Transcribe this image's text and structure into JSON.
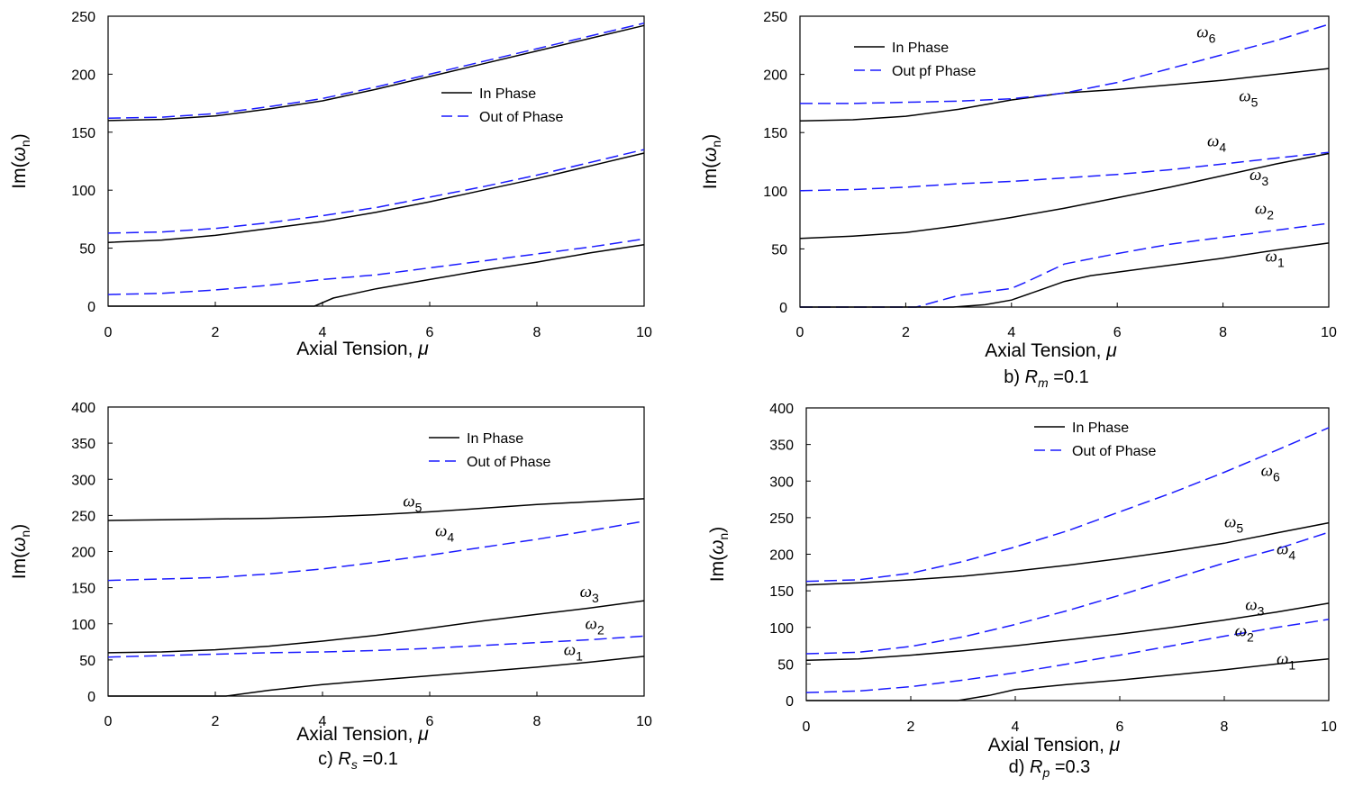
{
  "chart_data": [
    {
      "type": "line",
      "panel_caption": "",
      "ylabel": "Im(ωn)",
      "xlabel": "Axial Tension, μ",
      "xlim": [
        0,
        10
      ],
      "ylim": [
        0,
        250
      ],
      "xticks": [
        0,
        2,
        4,
        6,
        8,
        10
      ],
      "yticks": [
        0,
        50,
        100,
        150,
        200,
        250
      ],
      "legend": {
        "in_phase": "In Phase",
        "out_of_phase": "Out of Phase",
        "position": "top-right"
      },
      "mode_labels": [],
      "series": [
        {
          "phase": "in",
          "x": [
            0,
            1,
            2,
            3,
            4,
            5,
            6,
            7,
            8,
            9,
            10
          ],
          "y": [
            160,
            161,
            164,
            170,
            177,
            187,
            198,
            209,
            220,
            231,
            242
          ]
        },
        {
          "phase": "out",
          "x": [
            0,
            1,
            2,
            3,
            4,
            5,
            6,
            7,
            8,
            9,
            10
          ],
          "y": [
            162,
            163,
            166,
            172,
            179,
            189,
            200,
            211,
            222,
            233,
            244
          ]
        },
        {
          "phase": "in",
          "x": [
            0,
            1,
            2,
            3,
            4,
            5,
            6,
            7,
            8,
            9,
            10
          ],
          "y": [
            55,
            57,
            61,
            67,
            73,
            81,
            90,
            100,
            110,
            121,
            132
          ]
        },
        {
          "phase": "out",
          "x": [
            0,
            1,
            2,
            3,
            4,
            5,
            6,
            7,
            8,
            9,
            10
          ],
          "y": [
            63,
            64,
            67,
            72,
            78,
            85,
            94,
            103,
            113,
            124,
            135
          ]
        },
        {
          "phase": "in",
          "x": [
            0,
            1,
            2,
            3,
            3.85,
            4.2,
            5,
            6,
            7,
            8,
            9,
            10
          ],
          "y": [
            0,
            0,
            0,
            0,
            0,
            7,
            15,
            23,
            31,
            38,
            46,
            53
          ]
        },
        {
          "phase": "out",
          "x": [
            0,
            1,
            2,
            3,
            4,
            5,
            6,
            7,
            8,
            9,
            10
          ],
          "y": [
            10,
            11,
            14,
            18,
            23,
            27,
            33,
            39,
            45,
            51,
            58
          ]
        }
      ]
    },
    {
      "type": "line",
      "panel_caption": "b) Rm =0.1",
      "ylabel": "Im(ωn)",
      "xlabel": "Axial Tension, μ",
      "xlim": [
        0,
        10
      ],
      "ylim": [
        0,
        250
      ],
      "xticks": [
        0,
        2,
        4,
        6,
        8,
        10
      ],
      "yticks": [
        0,
        50,
        100,
        150,
        200,
        250
      ],
      "legend": {
        "in_phase": "In Phase",
        "out_of_phase": "Out pf Phase",
        "position": "top-left"
      },
      "mode_labels": [
        {
          "base": "ω",
          "sub": "6",
          "x": 7.5,
          "y": 232
        },
        {
          "base": "ω",
          "sub": "5",
          "x": 8.3,
          "y": 177
        },
        {
          "base": "ω",
          "sub": "4",
          "x": 7.7,
          "y": 138
        },
        {
          "base": "ω",
          "sub": "3",
          "x": 8.5,
          "y": 109
        },
        {
          "base": "ω",
          "sub": "2",
          "x": 8.6,
          "y": 80
        },
        {
          "base": "ω",
          "sub": "1",
          "x": 8.8,
          "y": 39
        }
      ],
      "series": [
        {
          "phase": "in",
          "x": [
            0,
            1,
            2,
            3,
            4,
            5,
            6,
            7,
            8,
            9,
            10
          ],
          "y": [
            160,
            161,
            164,
            170,
            178,
            184,
            187,
            191,
            195,
            200,
            205
          ]
        },
        {
          "phase": "out",
          "x": [
            0,
            1,
            2,
            3,
            4,
            5,
            6,
            7,
            8,
            9,
            10
          ],
          "y": [
            175,
            175,
            176,
            177,
            179,
            184,
            193,
            205,
            217,
            229,
            243
          ]
        },
        {
          "phase": "out",
          "x": [
            0,
            1,
            2,
            3,
            4,
            5,
            6,
            7,
            8,
            9,
            10
          ],
          "y": [
            100,
            101,
            103,
            106,
            108,
            111,
            114,
            118,
            123,
            128,
            133
          ]
        },
        {
          "phase": "in",
          "x": [
            0,
            1,
            2,
            3,
            4,
            5,
            6,
            7,
            8,
            9,
            10
          ],
          "y": [
            59,
            61,
            64,
            70,
            77,
            85,
            94,
            103,
            113,
            123,
            132
          ]
        },
        {
          "phase": "out",
          "x": [
            0,
            1,
            2,
            2.2,
            3,
            4,
            4.3,
            5,
            6,
            7,
            8,
            9,
            10
          ],
          "y": [
            0,
            0,
            0,
            0,
            10,
            16,
            22,
            37,
            46,
            54,
            60,
            66,
            72
          ]
        },
        {
          "phase": "in",
          "x": [
            0,
            1,
            2,
            2.9,
            3.5,
            4,
            4.5,
            5,
            5.5,
            6,
            7,
            8,
            9,
            10
          ],
          "y": [
            0,
            0,
            0,
            0,
            2,
            6,
            14,
            22,
            27,
            30,
            36,
            42,
            49,
            55
          ]
        }
      ]
    },
    {
      "type": "line",
      "panel_caption": "c) Rs =0.1",
      "ylabel": "Im(ωn)",
      "xlabel": "Axial Tension, μ",
      "xlim": [
        0,
        10
      ],
      "ylim": [
        0,
        400
      ],
      "xticks": [
        0,
        2,
        4,
        6,
        8,
        10
      ],
      "yticks": [
        0,
        50,
        100,
        150,
        200,
        250,
        300,
        350,
        400
      ],
      "legend": {
        "in_phase": "In Phase",
        "out_of_phase": "Out of Phase",
        "position": "top-right"
      },
      "mode_labels": [
        {
          "base": "ω",
          "sub": "5",
          "x": 5.5,
          "y": 262
        },
        {
          "base": "ω",
          "sub": "4",
          "x": 6.1,
          "y": 221
        },
        {
          "base": "ω",
          "sub": "3",
          "x": 8.8,
          "y": 137
        },
        {
          "base": "ω",
          "sub": "2",
          "x": 8.9,
          "y": 93
        },
        {
          "base": "ω",
          "sub": "1",
          "x": 8.5,
          "y": 57
        }
      ],
      "series": [
        {
          "phase": "in",
          "x": [
            0,
            1,
            2,
            3,
            4,
            5,
            6,
            7,
            8,
            9,
            10
          ],
          "y": [
            243,
            244,
            245,
            246,
            248,
            251,
            255,
            260,
            265,
            269,
            273
          ]
        },
        {
          "phase": "out",
          "x": [
            0,
            1,
            2,
            3,
            4,
            5,
            6,
            7,
            8,
            9,
            10
          ],
          "y": [
            160,
            162,
            164,
            169,
            176,
            185,
            195,
            206,
            217,
            229,
            242
          ]
        },
        {
          "phase": "in",
          "x": [
            0,
            1,
            2,
            3,
            4,
            5,
            6,
            7,
            8,
            9,
            10
          ],
          "y": [
            60,
            61,
            64,
            69,
            76,
            84,
            94,
            104,
            113,
            122,
            132
          ]
        },
        {
          "phase": "out",
          "x": [
            0,
            1,
            2,
            3,
            4,
            5,
            6,
            7,
            8,
            9,
            10
          ],
          "y": [
            54,
            56,
            58,
            60,
            61,
            63,
            66,
            70,
            74,
            78,
            83
          ]
        },
        {
          "phase": "in",
          "x": [
            0,
            1,
            2,
            2.2,
            3,
            4,
            5,
            6,
            7,
            8,
            9,
            10
          ],
          "y": [
            0,
            0,
            0,
            0,
            8,
            16,
            22,
            28,
            34,
            40,
            47,
            55
          ]
        }
      ]
    },
    {
      "type": "line",
      "panel_caption": "d) Rp =0.3",
      "ylabel": "Im(ωn)",
      "xlabel": "Axial Tension, μ",
      "xlim": [
        0,
        10
      ],
      "ylim": [
        0,
        400
      ],
      "xticks": [
        0,
        2,
        4,
        6,
        8,
        10
      ],
      "yticks": [
        0,
        50,
        100,
        150,
        200,
        250,
        300,
        350,
        400
      ],
      "legend": {
        "in_phase": "In Phase",
        "out_of_phase": "Out of Phase",
        "position": "top-left"
      },
      "mode_labels": [
        {
          "base": "ω",
          "sub": "6",
          "x": 8.7,
          "y": 307
        },
        {
          "base": "ω",
          "sub": "5",
          "x": 8.0,
          "y": 237
        },
        {
          "base": "ω",
          "sub": "4",
          "x": 9.0,
          "y": 200
        },
        {
          "base": "ω",
          "sub": "3",
          "x": 8.4,
          "y": 124
        },
        {
          "base": "ω",
          "sub": "2",
          "x": 8.2,
          "y": 88
        },
        {
          "base": "ω",
          "sub": "1",
          "x": 9.0,
          "y": 50
        }
      ],
      "series": [
        {
          "phase": "out",
          "x": [
            0,
            1,
            2,
            3,
            4,
            5,
            6,
            7,
            8,
            9,
            10
          ],
          "y": [
            163,
            165,
            174,
            190,
            210,
            232,
            258,
            284,
            312,
            342,
            373
          ]
        },
        {
          "phase": "in",
          "x": [
            0,
            1,
            2,
            3,
            4,
            5,
            6,
            7,
            8,
            9,
            10
          ],
          "y": [
            158,
            161,
            165,
            170,
            177,
            185,
            194,
            204,
            215,
            229,
            243
          ]
        },
        {
          "phase": "out",
          "x": [
            0,
            1,
            2,
            3,
            4,
            5,
            6,
            7,
            8,
            9,
            10
          ],
          "y": [
            64,
            66,
            74,
            87,
            104,
            123,
            144,
            166,
            188,
            207,
            230
          ]
        },
        {
          "phase": "in",
          "x": [
            0,
            1,
            2,
            3,
            4,
            5,
            6,
            7,
            8,
            9,
            10
          ],
          "y": [
            55,
            57,
            62,
            68,
            75,
            83,
            91,
            100,
            110,
            121,
            133
          ]
        },
        {
          "phase": "out",
          "x": [
            0,
            1,
            2,
            3,
            4,
            5,
            6,
            7,
            8,
            9,
            10
          ],
          "y": [
            11,
            13,
            19,
            28,
            38,
            50,
            62,
            75,
            88,
            100,
            111
          ]
        },
        {
          "phase": "in",
          "x": [
            0,
            1,
            2,
            2.9,
            3.5,
            4,
            5,
            6,
            7,
            8,
            9,
            10
          ],
          "y": [
            0,
            0,
            0,
            0,
            7,
            15,
            22,
            28,
            35,
            42,
            50,
            57
          ]
        }
      ]
    }
  ],
  "colors": {
    "in_phase": "#000000",
    "out_of_phase": "#1a1aff",
    "axis": "#000000"
  },
  "font_note": ""
}
